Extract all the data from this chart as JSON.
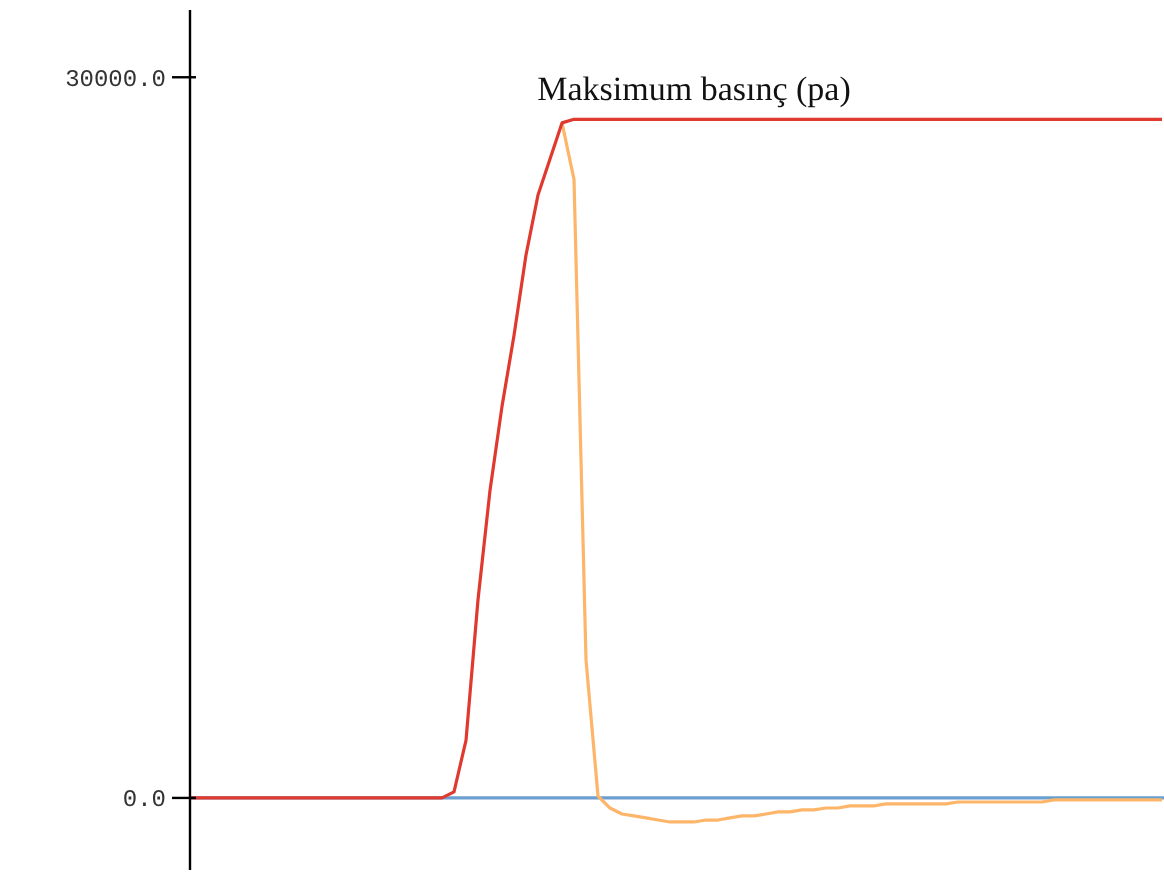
{
  "chart_data": {
    "type": "line",
    "title": "Maksimum basınç (pa)",
    "categories": [
      null,
      null,
      null,
      null,
      null,
      null,
      null,
      null,
      null,
      null,
      null,
      null,
      null,
      null,
      null,
      null,
      null,
      null,
      null,
      null,
      null,
      null,
      null,
      null,
      null,
      null,
      null,
      null,
      null,
      null,
      null,
      null,
      null,
      null,
      null,
      null,
      null,
      null,
      null,
      null,
      null,
      null,
      null,
      null,
      null,
      null,
      null,
      null,
      null,
      null,
      null,
      null,
      null,
      null,
      null,
      null,
      null,
      null,
      null,
      null,
      null,
      null,
      null,
      null,
      null,
      null,
      null,
      null,
      null,
      null,
      null,
      null,
      null,
      null,
      null,
      null,
      null,
      null,
      null,
      null,
      null,
      null
    ],
    "series": [
      {
        "color": "#fdb56a",
        "values": [
          null,
          null,
          null,
          null,
          null,
          null,
          null,
          null,
          null,
          null,
          null,
          null,
          null,
          null,
          null,
          null,
          null,
          null,
          null,
          null,
          null,
          null,
          null,
          null,
          null,
          null,
          null,
          null,
          null,
          null,
          null,
          28100,
          25750,
          5750,
          80,
          -420,
          -670,
          -750,
          -830,
          -920,
          -1000,
          -1000,
          -1000,
          -920,
          -920,
          -830,
          -750,
          -750,
          -670,
          -580,
          -580,
          -500,
          -500,
          -420,
          -420,
          -330,
          -330,
          -330,
          -250,
          -250,
          -250,
          -250,
          -250,
          -250,
          -170,
          -170,
          -170,
          -170,
          -170,
          -170,
          -170,
          -170,
          -80,
          -80,
          -80,
          -80,
          -80,
          -80,
          -80,
          -80,
          -80,
          -80
        ]
      },
      {
        "color": "#e0392e",
        "values": [
          0,
          0,
          0,
          0,
          0,
          0,
          0,
          0,
          0,
          0,
          0,
          0,
          0,
          0,
          0,
          0,
          0,
          0,
          0,
          0,
          0,
          0,
          250,
          2400,
          8250,
          12800,
          16300,
          19250,
          22600,
          25100,
          26600,
          28100,
          28250,
          28250,
          28250,
          28250,
          28250,
          28250,
          28250,
          28250,
          28250,
          28250,
          28250,
          28250,
          28250,
          28250,
          28250,
          28250,
          28250,
          28250,
          28250,
          28250,
          28250,
          28250,
          28250,
          28250,
          28250,
          28250,
          28250,
          28250,
          28250,
          28250,
          28250,
          28250,
          28250,
          28250,
          28250,
          28250,
          28250,
          28250,
          28250,
          28250,
          28250,
          28250,
          28250,
          28250,
          28250,
          28250,
          28250,
          28250,
          28250,
          28250
        ]
      }
    ],
    "ylim": [
      -3000,
      32800
    ],
    "yticks": [
      {
        "value": 0,
        "label": "0.0"
      },
      {
        "value": 30000,
        "label": "30000.0"
      }
    ],
    "ref_lines": [
      {
        "axis": "y",
        "value": 0,
        "color": "#6a9fcf"
      }
    ],
    "tick_labels": "y",
    "grid": false
  }
}
